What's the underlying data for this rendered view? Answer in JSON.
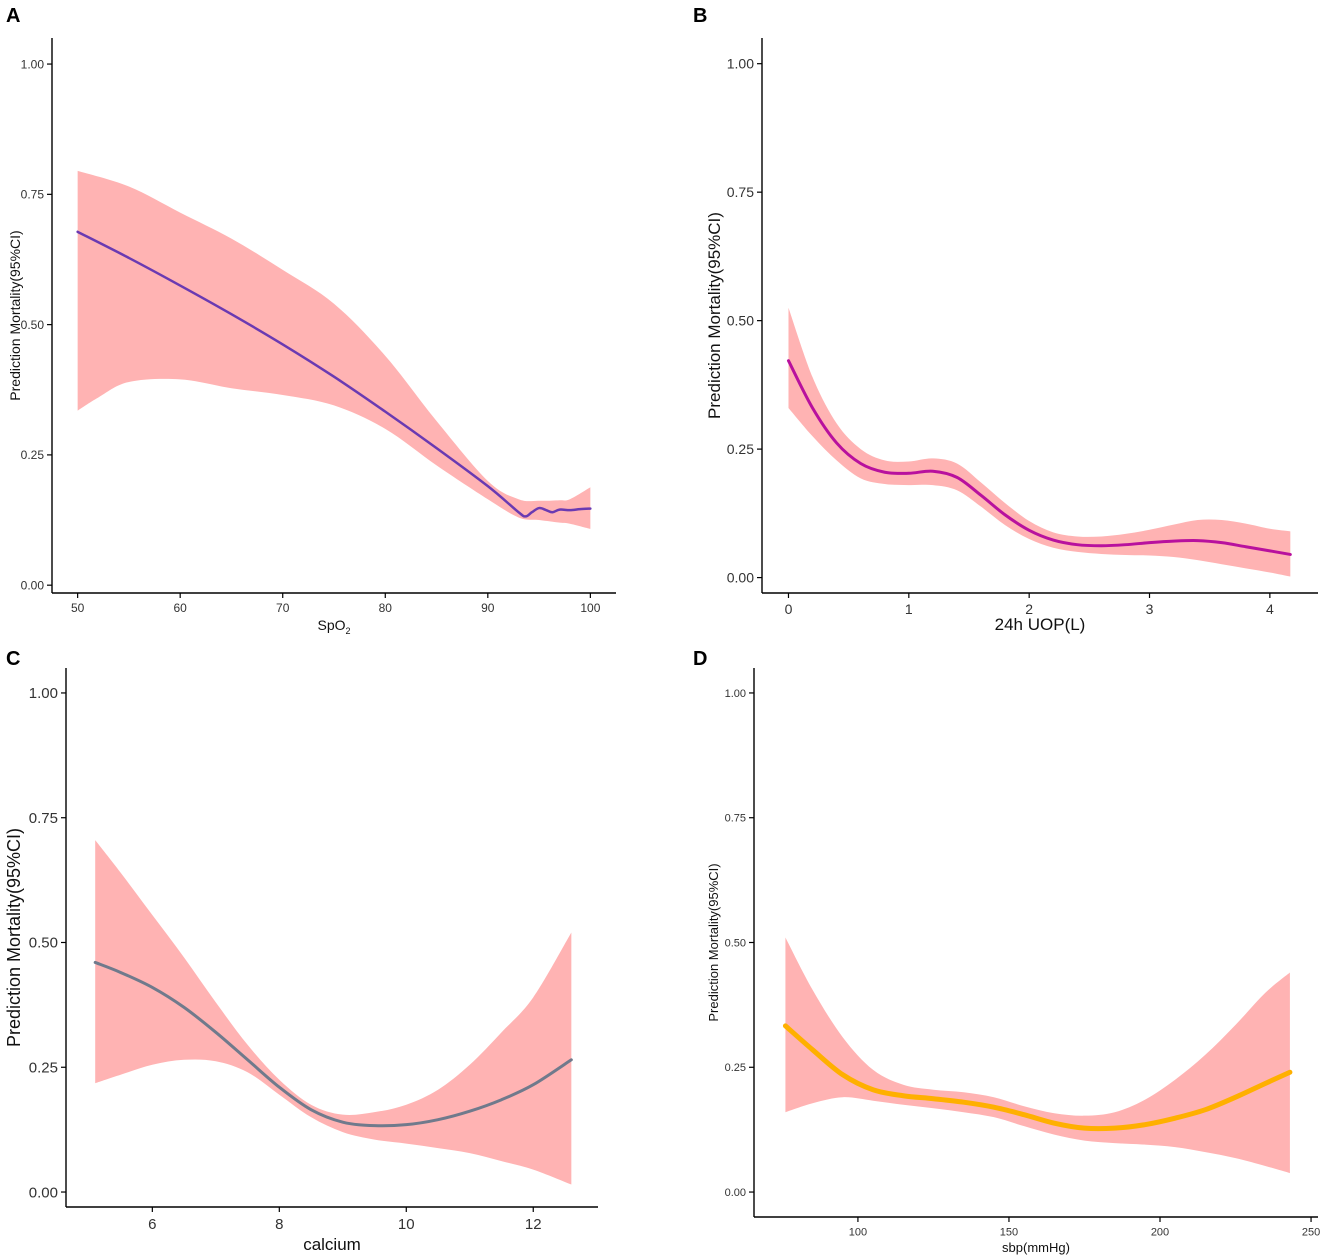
{
  "colors": {
    "ci_band": "#ffb3b3",
    "axis": "#000000"
  },
  "chart_data": [
    {
      "panel": "A",
      "type": "line",
      "title": "",
      "xlabel": "SpO",
      "xlabel_subscript": "2",
      "ylabel": "Prediction Mortality(95%CI)",
      "xlim": [
        47.5,
        102.5
      ],
      "ylim": [
        -0.015,
        1.05
      ],
      "xticks": [
        50,
        60,
        70,
        80,
        90,
        100
      ],
      "xtick_labels": [
        "50",
        "60",
        "70",
        "80",
        "90",
        "100"
      ],
      "yticks": [
        0,
        0.25,
        0.5,
        0.75,
        1.0
      ],
      "ytick_labels": [
        "0.00",
        "0.25",
        "0.50",
        "0.75",
        "1.00"
      ],
      "line_color": "#6a3ab2",
      "line_width": 2.5,
      "series": [
        {
          "name": "Prediction",
          "x": [
            50,
            55,
            60,
            65,
            70,
            75,
            80,
            85,
            90,
            93,
            93.7,
            94.3,
            95,
            95.7,
            96.3,
            97,
            98,
            99,
            100
          ],
          "y": [
            0.678,
            0.628,
            0.575,
            0.52,
            0.462,
            0.4,
            0.333,
            0.263,
            0.19,
            0.14,
            0.132,
            0.14,
            0.148,
            0.144,
            0.14,
            0.145,
            0.144,
            0.146,
            0.147
          ]
        },
        {
          "name": "Upper 95% CI",
          "x": [
            50,
            55,
            60,
            65,
            70,
            75,
            80,
            85,
            90,
            93,
            95,
            97,
            98,
            100
          ],
          "y": [
            0.795,
            0.765,
            0.715,
            0.665,
            0.605,
            0.54,
            0.44,
            0.315,
            0.2,
            0.165,
            0.162,
            0.163,
            0.165,
            0.188
          ]
        },
        {
          "name": "Lower 95% CI",
          "x": [
            50,
            52,
            55,
            60,
            65,
            70,
            75,
            80,
            85,
            90,
            93,
            95,
            97,
            98,
            100
          ],
          "y": [
            0.335,
            0.36,
            0.39,
            0.395,
            0.378,
            0.365,
            0.345,
            0.3,
            0.23,
            0.165,
            0.13,
            0.125,
            0.12,
            0.118,
            0.108
          ]
        }
      ]
    },
    {
      "panel": "B",
      "type": "line",
      "title": "",
      "xlabel": "24h UOP(L)",
      "ylabel": "Prediction Mortality(95%CI)",
      "xlim": [
        -0.22,
        4.4
      ],
      "ylim": [
        -0.03,
        1.05
      ],
      "xticks": [
        0,
        1,
        2,
        3,
        4
      ],
      "xtick_labels": [
        "0",
        "1",
        "2",
        "3",
        "4"
      ],
      "yticks": [
        0,
        0.25,
        0.5,
        0.75,
        1.0
      ],
      "ytick_labels": [
        "0.00",
        "0.25",
        "0.50",
        "0.75",
        "1.00"
      ],
      "line_color": "#b8119e",
      "line_width": 3,
      "series": [
        {
          "name": "Prediction",
          "x": [
            0,
            0.2,
            0.4,
            0.6,
            0.8,
            1.0,
            1.2,
            1.4,
            1.6,
            1.8,
            2.0,
            2.2,
            2.4,
            2.6,
            2.8,
            3.0,
            3.2,
            3.4,
            3.6,
            3.8,
            4.0,
            4.17
          ],
          "y": [
            0.422,
            0.33,
            0.262,
            0.222,
            0.205,
            0.203,
            0.207,
            0.195,
            0.16,
            0.122,
            0.092,
            0.073,
            0.064,
            0.062,
            0.064,
            0.068,
            0.071,
            0.072,
            0.068,
            0.06,
            0.052,
            0.045
          ]
        },
        {
          "name": "Upper 95% CI",
          "x": [
            0,
            0.2,
            0.4,
            0.6,
            0.8,
            1.0,
            1.2,
            1.4,
            1.6,
            1.8,
            2.0,
            2.2,
            2.4,
            2.6,
            2.8,
            3.0,
            3.2,
            3.4,
            3.6,
            3.8,
            4.0,
            4.17
          ],
          "y": [
            0.525,
            0.39,
            0.3,
            0.25,
            0.228,
            0.226,
            0.232,
            0.222,
            0.185,
            0.145,
            0.11,
            0.088,
            0.08,
            0.08,
            0.085,
            0.093,
            0.103,
            0.112,
            0.112,
            0.105,
            0.095,
            0.09
          ]
        },
        {
          "name": "Lower 95% CI",
          "x": [
            0,
            0.2,
            0.4,
            0.6,
            0.8,
            1.0,
            1.2,
            1.4,
            1.6,
            1.8,
            2.0,
            2.2,
            2.4,
            2.6,
            2.8,
            3.0,
            3.2,
            3.4,
            3.6,
            3.8,
            4.0,
            4.17
          ],
          "y": [
            0.33,
            0.275,
            0.228,
            0.193,
            0.182,
            0.18,
            0.18,
            0.17,
            0.138,
            0.102,
            0.075,
            0.058,
            0.05,
            0.046,
            0.044,
            0.043,
            0.04,
            0.034,
            0.026,
            0.018,
            0.01,
            0.002
          ]
        }
      ]
    },
    {
      "panel": "C",
      "type": "line",
      "title": "",
      "xlabel": "calcium",
      "ylabel": "Prediction Mortality(95%CI)",
      "xlim": [
        4.64,
        13.02
      ],
      "ylim": [
        -0.03,
        1.05
      ],
      "xticks": [
        6,
        8,
        10,
        12
      ],
      "xtick_labels": [
        "6",
        "8",
        "10",
        "12"
      ],
      "yticks": [
        0,
        0.25,
        0.5,
        0.75,
        1.0
      ],
      "ytick_labels": [
        "0.00",
        "0.25",
        "0.50",
        "0.75",
        "1.00"
      ],
      "line_color": "#707a8c",
      "line_width": 3,
      "series": [
        {
          "name": "Prediction",
          "x": [
            5.1,
            5.5,
            6.0,
            6.5,
            7.0,
            7.5,
            8.0,
            8.5,
            9.0,
            9.5,
            10.0,
            10.5,
            11.0,
            11.5,
            12.0,
            12.6
          ],
          "y": [
            0.46,
            0.44,
            0.41,
            0.37,
            0.32,
            0.265,
            0.21,
            0.165,
            0.14,
            0.133,
            0.135,
            0.145,
            0.162,
            0.185,
            0.215,
            0.265
          ]
        },
        {
          "name": "Upper 95% CI",
          "x": [
            5.1,
            5.5,
            6.0,
            6.5,
            7.0,
            7.5,
            8.0,
            8.5,
            9.0,
            9.5,
            10.0,
            10.5,
            11.0,
            11.5,
            12.0,
            12.6
          ],
          "y": [
            0.705,
            0.64,
            0.555,
            0.47,
            0.38,
            0.295,
            0.225,
            0.175,
            0.155,
            0.16,
            0.175,
            0.205,
            0.255,
            0.32,
            0.39,
            0.52
          ]
        },
        {
          "name": "Lower 95% CI",
          "x": [
            5.1,
            5.5,
            6.0,
            6.5,
            7.0,
            7.5,
            8.0,
            8.5,
            9.0,
            9.5,
            10.0,
            10.5,
            11.0,
            11.5,
            12.0,
            12.6
          ],
          "y": [
            0.218,
            0.235,
            0.255,
            0.265,
            0.262,
            0.24,
            0.195,
            0.15,
            0.12,
            0.105,
            0.097,
            0.088,
            0.078,
            0.062,
            0.045,
            0.015
          ]
        }
      ]
    },
    {
      "panel": "D",
      "type": "line",
      "title": "",
      "xlabel": "sbp(mmHg)",
      "ylabel": "Prediction Mortality(95%CI)",
      "xlim": [
        65.6,
        252.3
      ],
      "ylim": [
        -0.05,
        1.05
      ],
      "xticks": [
        100,
        150,
        200,
        250
      ],
      "xtick_labels": [
        "100",
        "150",
        "200",
        "250"
      ],
      "yticks": [
        0,
        0.25,
        0.5,
        0.75,
        1.0
      ],
      "ytick_labels": [
        "0.00",
        "0.25",
        "0.50",
        "0.75",
        "1.00"
      ],
      "line_color": "#ffb000",
      "line_width": 5,
      "series": [
        {
          "name": "Prediction",
          "x": [
            76,
            85,
            95,
            105,
            115,
            125,
            135,
            145,
            155,
            165,
            175,
            185,
            195,
            205,
            215,
            225,
            235,
            243
          ],
          "y": [
            0.333,
            0.285,
            0.235,
            0.205,
            0.193,
            0.187,
            0.18,
            0.17,
            0.155,
            0.138,
            0.128,
            0.128,
            0.135,
            0.148,
            0.165,
            0.19,
            0.218,
            0.24
          ]
        },
        {
          "name": "Upper 95% CI",
          "x": [
            76,
            85,
            95,
            105,
            115,
            125,
            135,
            145,
            155,
            165,
            175,
            185,
            195,
            205,
            215,
            225,
            235,
            243
          ],
          "y": [
            0.51,
            0.405,
            0.31,
            0.245,
            0.215,
            0.205,
            0.2,
            0.19,
            0.172,
            0.158,
            0.153,
            0.16,
            0.185,
            0.225,
            0.275,
            0.335,
            0.4,
            0.44
          ]
        },
        {
          "name": "Lower 95% CI",
          "x": [
            76,
            85,
            95,
            105,
            115,
            125,
            135,
            145,
            155,
            165,
            175,
            185,
            195,
            205,
            215,
            225,
            235,
            243
          ],
          "y": [
            0.16,
            0.178,
            0.19,
            0.183,
            0.175,
            0.168,
            0.16,
            0.15,
            0.132,
            0.115,
            0.103,
            0.098,
            0.095,
            0.09,
            0.08,
            0.068,
            0.052,
            0.038
          ]
        }
      ]
    }
  ]
}
